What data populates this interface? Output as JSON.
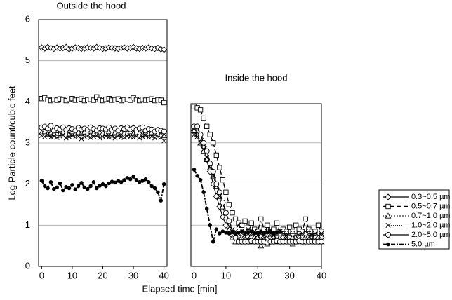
{
  "chart_data": [
    {
      "type": "line",
      "title": "Outside the hood",
      "ylabel": "Log Particle count/cubic feet",
      "xlabel": "Elapsed time [min]",
      "x": [
        0,
        1,
        2,
        3,
        4,
        5,
        6,
        7,
        8,
        9,
        10,
        11,
        12,
        13,
        14,
        15,
        16,
        17,
        18,
        19,
        20,
        21,
        22,
        23,
        24,
        25,
        26,
        27,
        28,
        29,
        30,
        31,
        32,
        33,
        34,
        35,
        36,
        37,
        38,
        39,
        40
      ],
      "xlim": [
        -1,
        41
      ],
      "ylim": [
        0,
        6
      ],
      "xticks": [
        0,
        10,
        20,
        30,
        40
      ],
      "yticks": [
        0,
        1,
        2,
        3,
        4,
        5,
        6
      ],
      "grid": true,
      "legend": "right",
      "series": [
        {
          "name": "0.3~0.5 µm",
          "color": "#000000",
          "marker": "diamond",
          "dash": "solid",
          "values": [
            5.32,
            5.3,
            5.33,
            5.31,
            5.29,
            5.32,
            5.3,
            5.31,
            5.33,
            5.28,
            5.3,
            5.32,
            5.31,
            5.29,
            5.3,
            5.32,
            5.31,
            5.3,
            5.33,
            5.31,
            5.29,
            5.3,
            5.32,
            5.31,
            5.3,
            5.29,
            5.31,
            5.32,
            5.3,
            5.31,
            5.33,
            5.3,
            5.29,
            5.31,
            5.3,
            5.32,
            5.3,
            5.29,
            5.31,
            5.28,
            5.27
          ]
        },
        {
          "name": "0.5~0.7 µm",
          "color": "#000000",
          "marker": "square",
          "dash": "long",
          "values": [
            4.08,
            4.1,
            4.05,
            4.03,
            4.06,
            4.04,
            4.07,
            4.05,
            4.03,
            4.06,
            4.08,
            4.04,
            4.05,
            4.07,
            4.03,
            4.05,
            4.06,
            4.04,
            4.12,
            4.05,
            4.03,
            4.06,
            4.08,
            4.04,
            4.05,
            4.07,
            4.03,
            4.05,
            4.06,
            4.04,
            4.1,
            4.05,
            4.03,
            4.06,
            4.04,
            4.05,
            4.07,
            4.03,
            4.05,
            4.04,
            3.98
          ]
        },
        {
          "name": "0.7~1.0 µm",
          "color": "#000000",
          "marker": "triangle",
          "dash": "dotted",
          "values": [
            3.25,
            3.28,
            3.22,
            3.26,
            3.24,
            3.3,
            3.23,
            3.27,
            3.25,
            3.22,
            3.28,
            3.24,
            3.26,
            3.23,
            3.27,
            3.25,
            3.29,
            3.24,
            3.22,
            3.26,
            3.25,
            3.23,
            3.28,
            3.24,
            3.26,
            3.22,
            3.27,
            3.25,
            3.24,
            3.28,
            3.23,
            3.26,
            3.25,
            3.22,
            3.27,
            3.24,
            3.26,
            3.23,
            3.25,
            3.2,
            3.18
          ]
        },
        {
          "name": "1.0~2.0 µm",
          "color": "#000000",
          "marker": "x",
          "dash": "fine",
          "values": [
            3.18,
            3.15,
            3.2,
            3.14,
            3.17,
            3.13,
            3.16,
            3.19,
            3.12,
            3.15,
            3.18,
            3.14,
            3.16,
            3.1,
            3.15,
            3.17,
            3.13,
            3.16,
            3.18,
            3.12,
            3.15,
            3.17,
            3.14,
            3.16,
            3.12,
            3.18,
            3.15,
            3.13,
            3.17,
            3.15,
            3.14,
            3.16,
            3.12,
            3.15,
            3.18,
            3.14,
            3.16,
            3.12,
            3.15,
            3.13,
            3.05
          ]
        },
        {
          "name": "2.0~5.0 µm",
          "color": "#000000",
          "marker": "circle",
          "dash": "solid",
          "values": [
            3.38,
            3.4,
            3.35,
            3.42,
            3.3,
            3.36,
            3.33,
            3.38,
            3.32,
            3.36,
            3.34,
            3.3,
            3.37,
            3.33,
            3.35,
            3.32,
            3.38,
            3.34,
            3.3,
            3.36,
            3.35,
            3.33,
            3.38,
            3.32,
            3.35,
            3.3,
            3.36,
            3.34,
            3.38,
            3.33,
            3.36,
            3.32,
            3.35,
            3.38,
            3.3,
            3.34,
            3.33,
            3.28,
            3.32,
            3.3,
            3.28
          ]
        },
        {
          "name": "5.0 µm",
          "color": "#000000",
          "marker": "dot",
          "dash": "dashdot",
          "values": [
            2.08,
            1.95,
            1.9,
            2.05,
            1.88,
            1.92,
            2.02,
            1.85,
            1.93,
            1.9,
            1.98,
            1.87,
            1.95,
            2.03,
            1.92,
            1.88,
            1.95,
            2.05,
            1.9,
            1.96,
            2.0,
            1.95,
            2.02,
            2.06,
            2.04,
            2.08,
            2.05,
            2.1,
            2.15,
            2.12,
            2.18,
            2.1,
            2.05,
            2.08,
            2.12,
            2.05,
            1.95,
            1.9,
            1.8,
            1.6,
            2.0
          ]
        }
      ]
    },
    {
      "type": "line",
      "title": "Inside the hood",
      "x": [
        0,
        1,
        2,
        3,
        4,
        5,
        6,
        7,
        8,
        9,
        10,
        11,
        12,
        13,
        14,
        15,
        16,
        17,
        18,
        19,
        20,
        21,
        22,
        23,
        24,
        25,
        26,
        27,
        28,
        29,
        30,
        31,
        32,
        33,
        34,
        35,
        36,
        37,
        38,
        39,
        40
      ],
      "xlim": [
        -1,
        40
      ],
      "ylim": [
        0,
        3.95
      ],
      "xticks": [
        0,
        10,
        20,
        30,
        40
      ],
      "gridlines": [
        1,
        2,
        3
      ],
      "series": [
        {
          "values": [
            3.3,
            3.25,
            3.1,
            2.9,
            2.6,
            2.3,
            2.0,
            1.7,
            1.45,
            1.2,
            1.0,
            0.85,
            0.75,
            0.7,
            0.72,
            0.68,
            0.7,
            0.72,
            0.7,
            0.68,
            0.7,
            0.72,
            0.7,
            0.68,
            0.7,
            0.72,
            0.7,
            0.68,
            0.7,
            0.72,
            0.7,
            0.68,
            0.7,
            0.72,
            0.7,
            0.68,
            0.7,
            0.72,
            0.7,
            0.68,
            0.7
          ]
        },
        {
          "values": [
            3.88,
            3.85,
            3.8,
            3.6,
            3.4,
            3.2,
            3.0,
            2.7,
            2.4,
            2.1,
            1.8,
            1.5,
            1.3,
            1.15,
            1.05,
            1.0,
            1.1,
            0.95,
            1.05,
            0.9,
            0.85,
            1.15,
            0.9,
            1.0,
            0.85,
            0.9,
            1.05,
            0.85,
            0.9,
            0.85,
            0.95,
            0.85,
            1.0,
            0.9,
            0.85,
            1.15,
            0.9,
            0.85,
            0.85,
            1.0,
            0.85
          ]
        },
        {
          "values": [
            3.3,
            3.2,
            3.0,
            2.8,
            2.6,
            2.4,
            2.2,
            1.95,
            1.7,
            1.45,
            1.2,
            0.9,
            0.7,
            0.6,
            0.6,
            0.6,
            0.65,
            0.6,
            0.6,
            0.62,
            0.6,
            0.5,
            0.6,
            0.55,
            0.6,
            0.6,
            0.62,
            0.6,
            0.6,
            0.65,
            0.6,
            0.55,
            0.6,
            0.62,
            0.6,
            0.6,
            0.65,
            0.6,
            0.6,
            0.6,
            0.6
          ]
        },
        {
          "values": [
            3.2,
            3.15,
            3.0,
            2.85,
            2.65,
            2.4,
            2.2,
            1.95,
            1.7,
            1.5,
            1.3,
            1.05,
            0.9,
            0.85,
            1.0,
            0.8,
            0.85,
            0.9,
            0.8,
            0.85,
            0.75,
            0.8,
            0.7,
            0.85,
            0.8,
            0.75,
            0.8,
            0.85,
            0.8,
            0.75,
            0.8,
            0.6,
            0.8,
            0.75,
            0.8,
            0.85,
            0.8,
            0.75,
            0.8,
            0.75,
            0.8
          ]
        },
        {
          "values": [
            3.4,
            3.4,
            3.2,
            3.0,
            2.8,
            2.5,
            2.3,
            2.0,
            1.8,
            1.55,
            1.3,
            1.1,
            0.85,
            0.7,
            0.6,
            0.6,
            0.6,
            0.6,
            0.62,
            0.6,
            0.6,
            0.6,
            0.6,
            0.58,
            0.6,
            0.6,
            0.62,
            0.6,
            0.6,
            0.6,
            0.6,
            0.6,
            0.6,
            0.62,
            0.6,
            0.6,
            0.6,
            0.6,
            0.6,
            0.6,
            0.6
          ]
        },
        {
          "values": [
            2.35,
            2.2,
            2.1,
            1.8,
            1.4,
            1.0,
            0.6,
            0.9,
            0.8,
            0.85,
            0.82,
            0.8,
            0.85,
            0.8,
            0.82,
            0.85,
            0.8,
            0.82,
            0.85,
            0.8,
            0.82,
            0.85,
            0.8,
            0.82,
            0.85,
            0.8,
            0.82,
            0.85,
            null,
            null,
            null,
            null,
            null,
            null,
            null,
            null,
            null,
            null,
            null,
            null,
            null
          ]
        }
      ]
    }
  ]
}
